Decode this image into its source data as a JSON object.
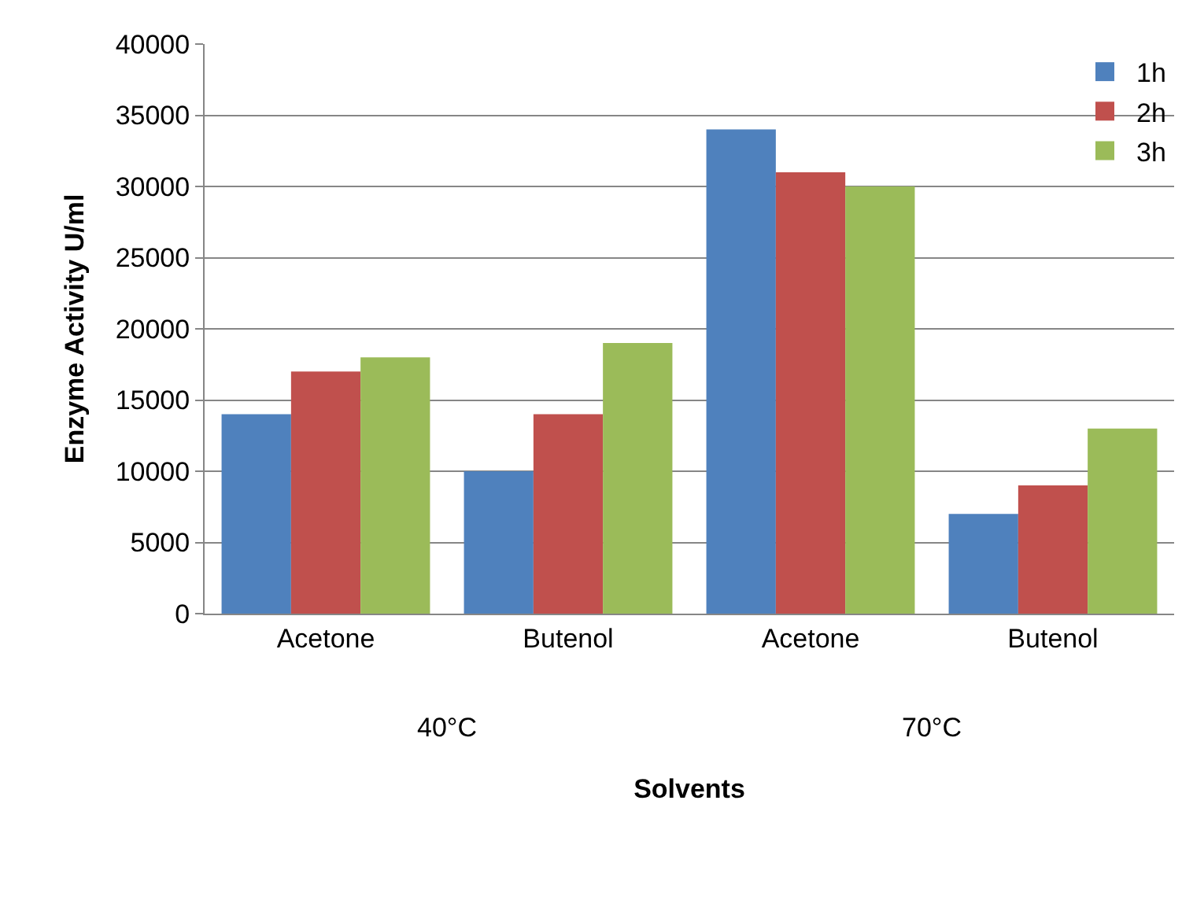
{
  "chart_data": {
    "type": "bar",
    "xlabel": "Solvents",
    "ylabel": "Enzyme Activity U/ml",
    "categories": [
      "Acetone",
      "Butenol",
      "Acetone",
      "Butenol"
    ],
    "annotations": [
      "40°C",
      "70°C"
    ],
    "series": [
      {
        "name": "1h",
        "color": "#4f81bd",
        "values": [
          14000,
          10000,
          34000,
          7000
        ]
      },
      {
        "name": "2h",
        "color": "#c0504d",
        "values": [
          17000,
          14000,
          31000,
          9000
        ]
      },
      {
        "name": "3h",
        "color": "#9bbb59",
        "values": [
          18000,
          19000,
          30000,
          13000
        ]
      }
    ],
    "ylim": [
      0,
      40000
    ],
    "yticks": [
      0,
      5000,
      10000,
      15000,
      20000,
      25000,
      30000,
      35000,
      40000
    ],
    "grid": "y",
    "legend": "top right"
  }
}
